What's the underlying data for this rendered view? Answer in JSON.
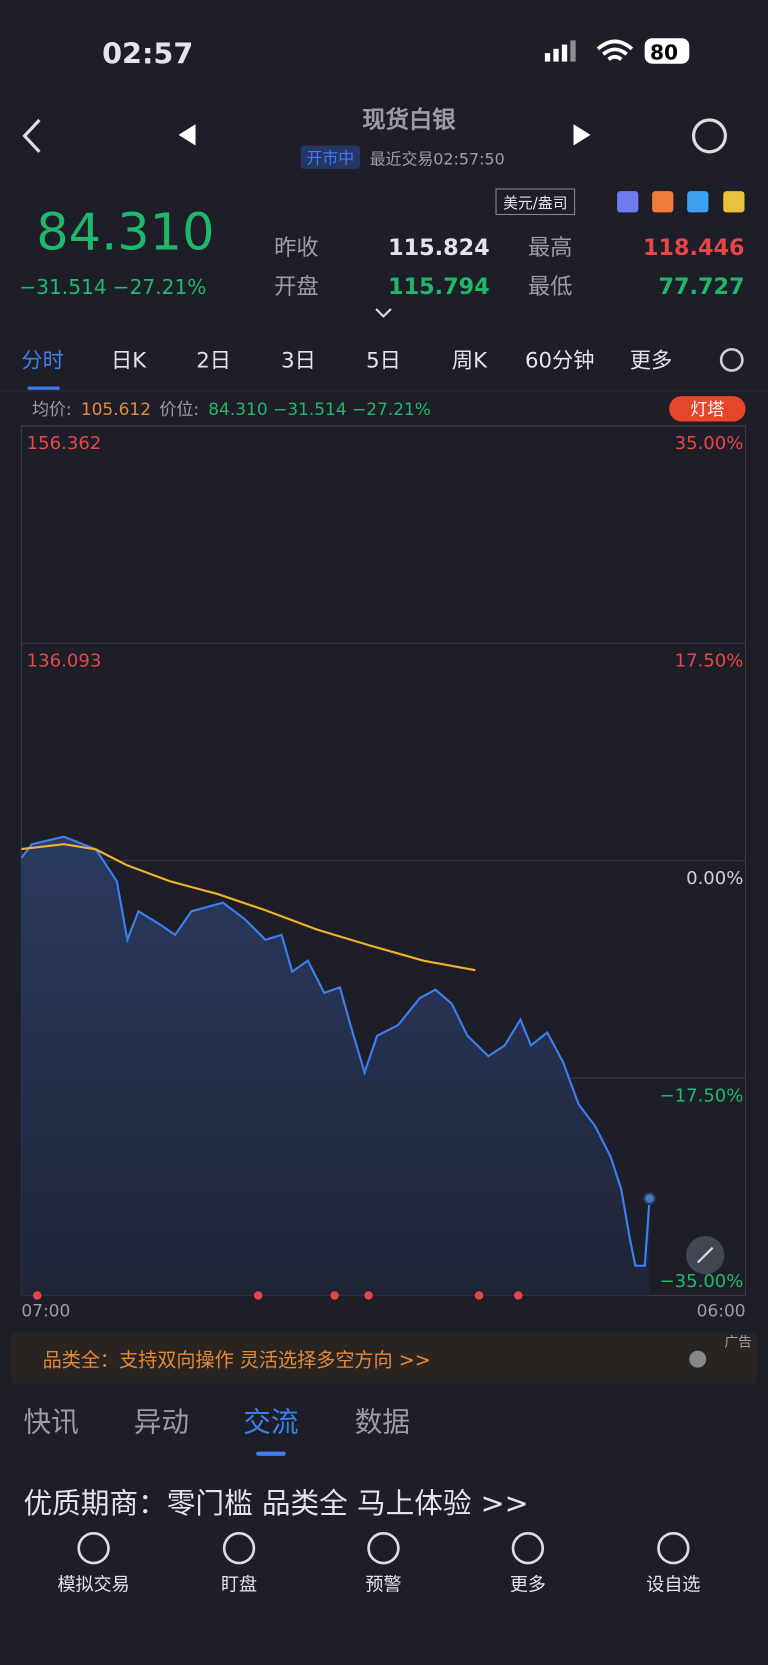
{
  "status_bar": {
    "time": "02:57",
    "battery": "80"
  },
  "header": {
    "title": "现货白银",
    "market_status": "开市中",
    "last_trade": "最近交易02:57:50"
  },
  "quote": {
    "price": "84.310",
    "change": "−31.514",
    "change_pct": "−27.21%",
    "unit": "美元/盎司",
    "stats": [
      {
        "label": "昨收",
        "value": "115.824"
      },
      {
        "label": "最高",
        "value": "118.446"
      },
      {
        "label": "开盘",
        "value": "115.794"
      },
      {
        "label": "最低",
        "value": "77.727"
      }
    ]
  },
  "period_tabs": [
    "分时",
    "日K",
    "2日",
    "3日",
    "5日",
    "周K",
    "60分钟",
    "更多"
  ],
  "info_line": {
    "avg_label": "均价:",
    "avg_value": "105.612",
    "price_label": "价位:",
    "price_value": "84.310 −31.514 −27.21%",
    "badge": "灯塔"
  },
  "chart_data": {
    "type": "line",
    "x": [
      "07:00",
      "07:20",
      "08:21",
      "09:22",
      "10:02",
      "10:22",
      "10:43",
      "11:23",
      "11:53",
      "12:24",
      "13:24",
      "14:05",
      "14:45",
      "15:16",
      "15:36",
      "16:06",
      "16:37",
      "17:07",
      "17:27",
      "17:54",
      "18:18",
      "18:58",
      "19:39",
      "20:09",
      "20:40",
      "21:10",
      "21:50",
      "22:21",
      "22:51",
      "23:11",
      "23:42",
      "00:12",
      "00:42",
      "01:13",
      "01:43",
      "02:03",
      "02:19",
      "02:30",
      "02:48",
      "02:57"
    ],
    "series": [
      {
        "name": "价位",
        "color": "#3d7ff0",
        "values": [
          116.07,
          117.36,
          118.05,
          116.87,
          113.9,
          108.45,
          111.1,
          109.9,
          108.9,
          111.1,
          111.9,
          110.4,
          108.45,
          108.9,
          105.48,
          106.5,
          103.5,
          104.0,
          100.5,
          96.08,
          99.5,
          100.5,
          103.0,
          103.8,
          102.5,
          99.5,
          97.6,
          98.6,
          101.0,
          98.6,
          99.8,
          97.07,
          93.1,
          91.1,
          88.2,
          85.2,
          80.7,
          78.06,
          78.06,
          84.31
        ]
      },
      {
        "name": "均价",
        "color": "#f0b429",
        "x": [
          "07:00",
          "08:21",
          "09:22",
          "10:22",
          "11:43",
          "13:15",
          "14:45",
          "16:23",
          "18:05",
          "19:46",
          "21:25",
          "22:55",
          "23:52",
          "01:03",
          "02:57"
        ],
        "values": [
          116.9,
          117.36,
          116.87,
          115.38,
          113.9,
          112.7,
          111.2,
          109.4,
          107.9,
          106.5,
          105.612,
          null,
          null,
          null,
          null
        ]
      }
    ],
    "xlim": [
      "07:00",
      "06:00"
    ],
    "xticks": [
      "07:00",
      "06:00"
    ],
    "ylim": [
      75.286,
      156.362
    ],
    "yticks": [
      75.286,
      95.555,
      115.824,
      136.093,
      156.362
    ],
    "y2lim": [
      -35,
      35
    ],
    "y2ticks": [
      {
        "value": -35,
        "label": "−35.00%"
      },
      {
        "value": -17.5,
        "label": "−17.50%"
      },
      {
        "value": 0,
        "label": "0.00%"
      },
      {
        "value": 17.5,
        "label": "17.50%"
      },
      {
        "value": 35,
        "label": "35.00%"
      }
    ],
    "grid": true
  },
  "ad": {
    "text": "品类全：支持双向操作 灵活选择多空方向 >>",
    "tag": "广告"
  },
  "news_tabs": [
    "快讯",
    "异动",
    "交流",
    "数据"
  ],
  "promo": "优质期商：零门槛 品类全 马上体验 >>",
  "bottom_nav": [
    "模拟交易",
    "盯盘",
    "预警",
    "更多",
    "设自选"
  ]
}
